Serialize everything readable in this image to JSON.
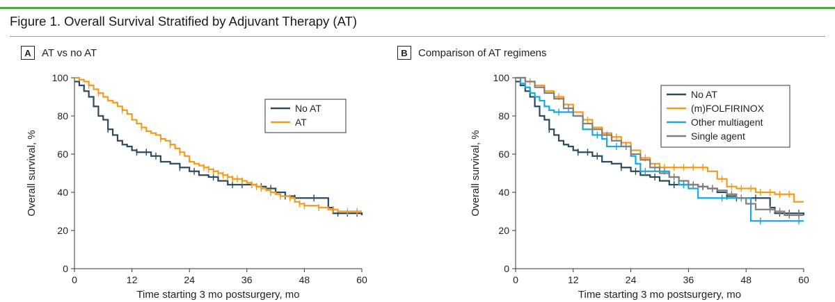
{
  "figure": {
    "title": "Figure 1. Overall Survival Stratified by Adjuvant Therapy (AT)",
    "accent_color": "#4aa842"
  },
  "panels": {
    "a": {
      "letter": "A",
      "title": "AT vs no AT"
    },
    "b": {
      "letter": "B",
      "title": "Comparison of AT regimens"
    }
  },
  "chart_data": [
    {
      "id": "A",
      "type": "line",
      "title": "AT vs no AT",
      "xlabel": "Time starting 3 mo postsurgery, mo",
      "ylabel": "Overall survival, %",
      "xlim": [
        0,
        60
      ],
      "ylim": [
        0,
        100
      ],
      "xticks": [
        0,
        12,
        24,
        36,
        48,
        60
      ],
      "yticks": [
        0,
        20,
        40,
        60,
        80,
        100
      ],
      "legend": "top-right",
      "series": [
        {
          "name": "No AT",
          "color": "#2c4a5e",
          "x": [
            0,
            1,
            2,
            3,
            4,
            5,
            6,
            7,
            8,
            9,
            10,
            11,
            12,
            13,
            14,
            16,
            18,
            20,
            22,
            24,
            26,
            28,
            30,
            32,
            34,
            36,
            38,
            40,
            42,
            44,
            46,
            48,
            50,
            52,
            53,
            54,
            56,
            58,
            60
          ],
          "y": [
            98,
            96,
            93,
            90,
            85,
            80,
            78,
            73,
            70,
            67,
            65,
            64,
            62,
            61,
            61,
            59,
            56,
            55,
            53,
            51,
            49,
            48,
            46,
            44,
            44,
            44,
            43,
            42,
            40,
            38,
            37,
            37,
            37,
            37,
            32,
            29,
            29,
            29,
            28
          ],
          "censor_x": [
            7,
            13,
            15,
            17,
            22,
            25,
            29,
            33,
            35,
            37,
            39,
            41,
            44,
            46,
            50,
            55,
            57,
            59
          ]
        },
        {
          "name": "AT",
          "color": "#f29b1e",
          "x": [
            0,
            1,
            2,
            3,
            4,
            5,
            6,
            7,
            8,
            9,
            10,
            11,
            12,
            13,
            14,
            15,
            16,
            17,
            18,
            19,
            20,
            21,
            22,
            23,
            24,
            25,
            26,
            27,
            28,
            29,
            30,
            31,
            32,
            33,
            34,
            35,
            36,
            37,
            38,
            39,
            40,
            41,
            42,
            43,
            44,
            45,
            46,
            47,
            48,
            49,
            50,
            51,
            52,
            53,
            54,
            55,
            56,
            58,
            60
          ],
          "y": [
            100,
            99,
            98,
            96,
            94,
            92,
            90,
            88,
            87,
            85,
            83,
            81,
            78,
            76,
            74,
            72,
            71,
            70,
            68,
            67,
            65,
            63,
            61,
            59,
            56,
            55,
            54,
            53,
            52,
            51,
            50,
            49,
            48,
            47,
            47,
            46,
            45,
            44,
            43,
            42,
            41,
            40,
            39,
            38,
            38,
            37,
            35,
            34,
            33,
            33,
            33,
            32,
            32,
            31,
            31,
            30,
            30,
            30,
            30
          ],
          "censor_x": [
            3,
            5,
            10,
            14,
            18,
            20,
            22,
            27,
            28,
            29,
            30,
            31,
            32,
            33,
            34,
            35,
            37,
            38,
            39,
            41,
            43,
            45,
            47,
            48,
            51,
            54,
            57,
            59
          ]
        }
      ]
    },
    {
      "id": "B",
      "type": "line",
      "title": "Comparison of AT regimens",
      "xlabel": "Time starting 3 mo postsurgery, mo",
      "ylabel": "Overall survival, %",
      "xlim": [
        0,
        60
      ],
      "ylim": [
        0,
        100
      ],
      "xticks": [
        0,
        12,
        24,
        36,
        48,
        60
      ],
      "yticks": [
        0,
        20,
        40,
        60,
        80,
        100
      ],
      "legend": "top-right",
      "series": [
        {
          "name": "No AT",
          "color": "#2c4a5e",
          "x": [
            0,
            1,
            2,
            3,
            4,
            5,
            6,
            7,
            8,
            9,
            10,
            11,
            12,
            13,
            14,
            16,
            18,
            20,
            22,
            24,
            26,
            28,
            30,
            32,
            34,
            36,
            38,
            40,
            42,
            44,
            46,
            48,
            50,
            52,
            53,
            54,
            56,
            58,
            60
          ],
          "y": [
            98,
            96,
            93,
            90,
            85,
            80,
            78,
            73,
            70,
            67,
            65,
            64,
            62,
            61,
            61,
            59,
            56,
            55,
            53,
            51,
            49,
            48,
            46,
            44,
            44,
            44,
            43,
            42,
            40,
            38,
            37,
            37,
            37,
            37,
            32,
            29,
            29,
            29,
            28
          ],
          "censor_x": [
            7,
            13,
            15,
            17,
            22,
            25,
            29,
            33,
            35,
            37,
            39,
            41,
            44,
            46,
            50,
            55,
            57,
            59
          ]
        },
        {
          "name": "(m)FOLFIRINOX",
          "color": "#f29b1e",
          "x": [
            0,
            2,
            4,
            6,
            8,
            10,
            12,
            14,
            16,
            18,
            20,
            22,
            24,
            26,
            28,
            30,
            32,
            34,
            36,
            38,
            40,
            42,
            44,
            46,
            48,
            50,
            52,
            54,
            56,
            58,
            60
          ],
          "y": [
            100,
            98,
            96,
            93,
            90,
            86,
            82,
            78,
            74,
            71,
            69,
            66,
            62,
            58,
            55,
            53,
            53,
            53,
            53,
            53,
            51,
            47,
            43,
            42,
            42,
            40,
            40,
            39,
            39,
            35,
            35
          ],
          "censor_x": [
            3,
            9,
            15,
            21,
            27,
            31,
            33,
            35,
            37,
            39,
            43,
            45,
            47,
            49,
            51,
            53,
            55,
            57
          ]
        },
        {
          "name": "Other multiagent",
          "color": "#19a9dd",
          "x": [
            0,
            1,
            2,
            3,
            4,
            5,
            6,
            7,
            8,
            10,
            12,
            14,
            16,
            18,
            19,
            20,
            22,
            24,
            25,
            26,
            28,
            30,
            32,
            34,
            36,
            38,
            40,
            42,
            44,
            46,
            48,
            49,
            50,
            52,
            54,
            56,
            58,
            60
          ],
          "y": [
            100,
            97,
            95,
            92,
            90,
            88,
            85,
            83,
            82,
            82,
            80,
            73,
            70,
            68,
            64,
            64,
            64,
            59,
            55,
            51,
            51,
            51,
            48,
            44,
            42,
            37,
            37,
            37,
            37,
            37,
            37,
            25,
            25,
            25,
            25,
            25,
            25,
            25
          ],
          "censor_x": [
            9,
            17,
            21,
            27,
            31,
            35,
            43,
            47,
            51,
            59
          ]
        },
        {
          "name": "Single agent",
          "color": "#808080",
          "x": [
            0,
            2,
            4,
            6,
            8,
            10,
            12,
            14,
            16,
            18,
            20,
            22,
            24,
            26,
            28,
            30,
            32,
            34,
            36,
            38,
            40,
            42,
            44,
            46,
            48,
            50,
            52,
            54,
            56,
            58,
            60
          ],
          "y": [
            100,
            98,
            95,
            92,
            89,
            84,
            80,
            76,
            73,
            70,
            67,
            64,
            60,
            57,
            53,
            50,
            48,
            46,
            44,
            43,
            42,
            41,
            39,
            37,
            34,
            31,
            31,
            30,
            28,
            28,
            28
          ],
          "censor_x": [
            11,
            19,
            23,
            29,
            33,
            37,
            41,
            45,
            49,
            53,
            55,
            57,
            59
          ]
        }
      ]
    }
  ]
}
